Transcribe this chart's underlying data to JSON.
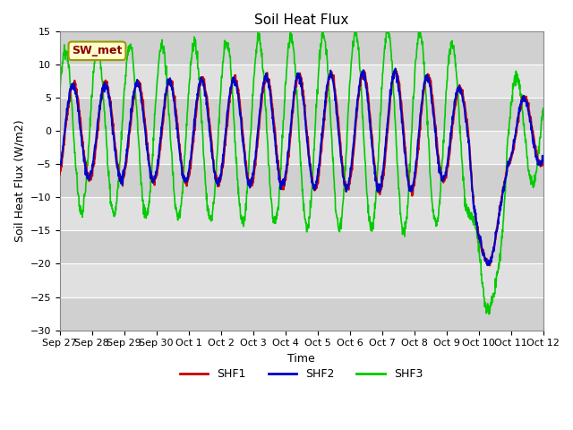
{
  "title": "Soil Heat Flux",
  "xlabel": "Time",
  "ylabel": "Soil Heat Flux (W/m2)",
  "ylim": [
    -30,
    15
  ],
  "yticks": [
    -30,
    -25,
    -20,
    -15,
    -10,
    -5,
    0,
    5,
    10,
    15
  ],
  "annotation": "SW_met",
  "legend_labels": [
    "SHF1",
    "SHF2",
    "SHF3"
  ],
  "line_colors": [
    "#cc0000",
    "#0000cc",
    "#00cc00"
  ],
  "plot_bg": "#cccccc",
  "band_colors": [
    "#d8d8d8",
    "#c8c8c8"
  ],
  "xtick_labels": [
    "Sep 27",
    "Sep 28",
    "Sep 29",
    "Sep 30",
    "Oct 1",
    "Oct 2",
    "Oct 3",
    "Oct 4",
    "Oct 5",
    "Oct 6",
    "Oct 7",
    "Oct 8",
    "Oct 9",
    "Oct 10",
    "Oct 11",
    "Oct 12"
  ],
  "n_days": 15
}
